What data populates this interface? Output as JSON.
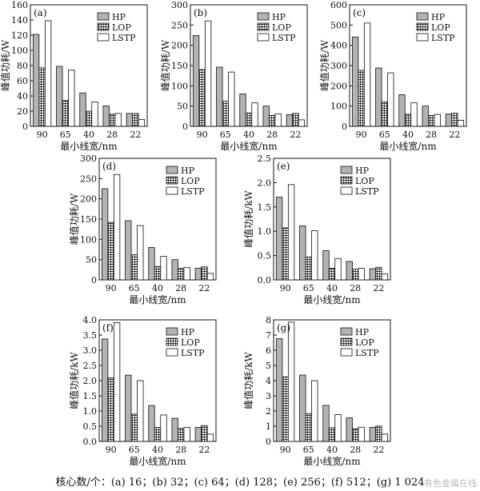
{
  "caption": "核心数/个：(a) 16；(b) 32；(c) 64；(d) 128；(e) 256；(f) 512；(g) 1 024",
  "watermark": "有色金属在线",
  "colors": {
    "HP": "#b3b3b3",
    "LOP_fill": "#ffffff",
    "LOP_hatch": "#333333",
    "LSTP": "#ffffff",
    "stroke": "#111111"
  },
  "chart_data": [
    {
      "type": "bar",
      "panel": "(a)",
      "xlabel": "最小线宽/nm",
      "ylabel": "峰值功耗/W",
      "categories": [
        "90",
        "65",
        "40",
        "28",
        "22"
      ],
      "ylim": [
        0,
        160
      ],
      "yticks": [
        0,
        20,
        40,
        60,
        80,
        100,
        120,
        140,
        160
      ],
      "legend_position": "top-right",
      "series": [
        {
          "name": "HP",
          "values": [
            121,
            79,
            44,
            27,
            17
          ]
        },
        {
          "name": "LOP",
          "values": [
            77,
            34,
            20,
            16,
            17
          ]
        },
        {
          "name": "LSTP",
          "values": [
            139,
            74,
            32,
            17,
            9
          ]
        }
      ]
    },
    {
      "type": "bar",
      "panel": "(b)",
      "xlabel": "最小线宽/nm",
      "ylabel": "峰值功耗/W",
      "categories": [
        "90",
        "65",
        "40",
        "28",
        "22"
      ],
      "ylim": [
        0,
        300
      ],
      "yticks": [
        0,
        50,
        100,
        150,
        200,
        250,
        300
      ],
      "legend_position": "top-right",
      "series": [
        {
          "name": "HP",
          "values": [
            224,
            146,
            80,
            50,
            29
          ]
        },
        {
          "name": "LOP",
          "values": [
            140,
            62,
            33,
            27,
            32
          ]
        },
        {
          "name": "LSTP",
          "values": [
            260,
            134,
            58,
            31,
            16
          ]
        }
      ]
    },
    {
      "type": "bar",
      "panel": "(c)",
      "xlabel": "最小线宽/nm",
      "ylabel": "峰值功耗/W",
      "categories": [
        "90",
        "65",
        "40",
        "28",
        "22"
      ],
      "ylim": [
        0,
        600
      ],
      "yticks": [
        0,
        100,
        200,
        300,
        400,
        500,
        600
      ],
      "legend_position": "top-right",
      "series": [
        {
          "name": "HP",
          "values": [
            441,
            288,
            156,
            100,
            61
          ]
        },
        {
          "name": "LOP",
          "values": [
            276,
            121,
            60,
            54,
            65
          ]
        },
        {
          "name": "LSTP",
          "values": [
            510,
            264,
            116,
            59,
            30
          ]
        }
      ]
    },
    {
      "type": "bar",
      "panel": "(d)",
      "xlabel": "最小线宽/nm",
      "ylabel": "峰值功耗/W",
      "categories": [
        "90",
        "65",
        "40",
        "28",
        "22"
      ],
      "ylim": [
        0,
        300
      ],
      "yticks": [
        0,
        50,
        100,
        150,
        200,
        250,
        300
      ],
      "legend_position": "top-right",
      "series": [
        {
          "name": "HP",
          "values": [
            225,
            146,
            80,
            50,
            29
          ]
        },
        {
          "name": "LOP",
          "values": [
            142,
            62,
            33,
            28,
            32
          ]
        },
        {
          "name": "LSTP",
          "values": [
            260,
            134,
            58,
            31,
            16
          ]
        }
      ]
    },
    {
      "type": "bar",
      "panel": "(e)",
      "xlabel": "最小线宽/nm",
      "ylabel": "峰值功耗/kW",
      "categories": [
        "90",
        "65",
        "40",
        "28",
        "22"
      ],
      "ylim": [
        0,
        2.5
      ],
      "yticks": [
        0,
        0.5,
        1.0,
        1.5,
        2.0,
        2.5
      ],
      "legend_position": "top-right",
      "series": [
        {
          "name": "HP",
          "values": [
            1.7,
            1.11,
            0.6,
            0.38,
            0.23
          ]
        },
        {
          "name": "LOP",
          "values": [
            1.07,
            0.47,
            0.24,
            0.22,
            0.26
          ]
        },
        {
          "name": "LSTP",
          "values": [
            1.96,
            1.01,
            0.44,
            0.24,
            0.12
          ]
        }
      ]
    },
    {
      "type": "bar",
      "panel": "(f)",
      "xlabel": "最小线宽/nm",
      "ylabel": "峰值功耗/kW",
      "categories": [
        "90",
        "65",
        "40",
        "28",
        "22"
      ],
      "ylim": [
        0,
        4.0
      ],
      "yticks": [
        0,
        0.5,
        1.0,
        1.5,
        2.0,
        2.5,
        3.0,
        3.5,
        4.0
      ],
      "legend_position": "top-right",
      "series": [
        {
          "name": "HP",
          "values": [
            3.37,
            2.18,
            1.18,
            0.76,
            0.46
          ]
        },
        {
          "name": "LOP",
          "values": [
            2.09,
            0.9,
            0.46,
            0.43,
            0.52
          ]
        },
        {
          "name": "LSTP",
          "values": [
            3.91,
            2.0,
            0.87,
            0.46,
            0.24
          ]
        }
      ]
    },
    {
      "type": "bar",
      "panel": "(g)",
      "xlabel": "最小线宽/nm",
      "ylabel": "峰值功耗/kW",
      "categories": [
        "90",
        "65",
        "40",
        "28",
        "22"
      ],
      "ylim": [
        0,
        8
      ],
      "yticks": [
        0,
        1,
        2,
        3,
        4,
        5,
        6,
        7,
        8
      ],
      "legend_position": "top-right",
      "series": [
        {
          "name": "HP",
          "values": [
            6.76,
            4.37,
            2.37,
            1.55,
            0.93
          ]
        },
        {
          "name": "LOP",
          "values": [
            4.25,
            1.83,
            0.9,
            0.84,
            1.01
          ]
        },
        {
          "name": "LSTP",
          "values": [
            7.85,
            4.0,
            1.76,
            0.93,
            0.48
          ]
        }
      ]
    }
  ]
}
